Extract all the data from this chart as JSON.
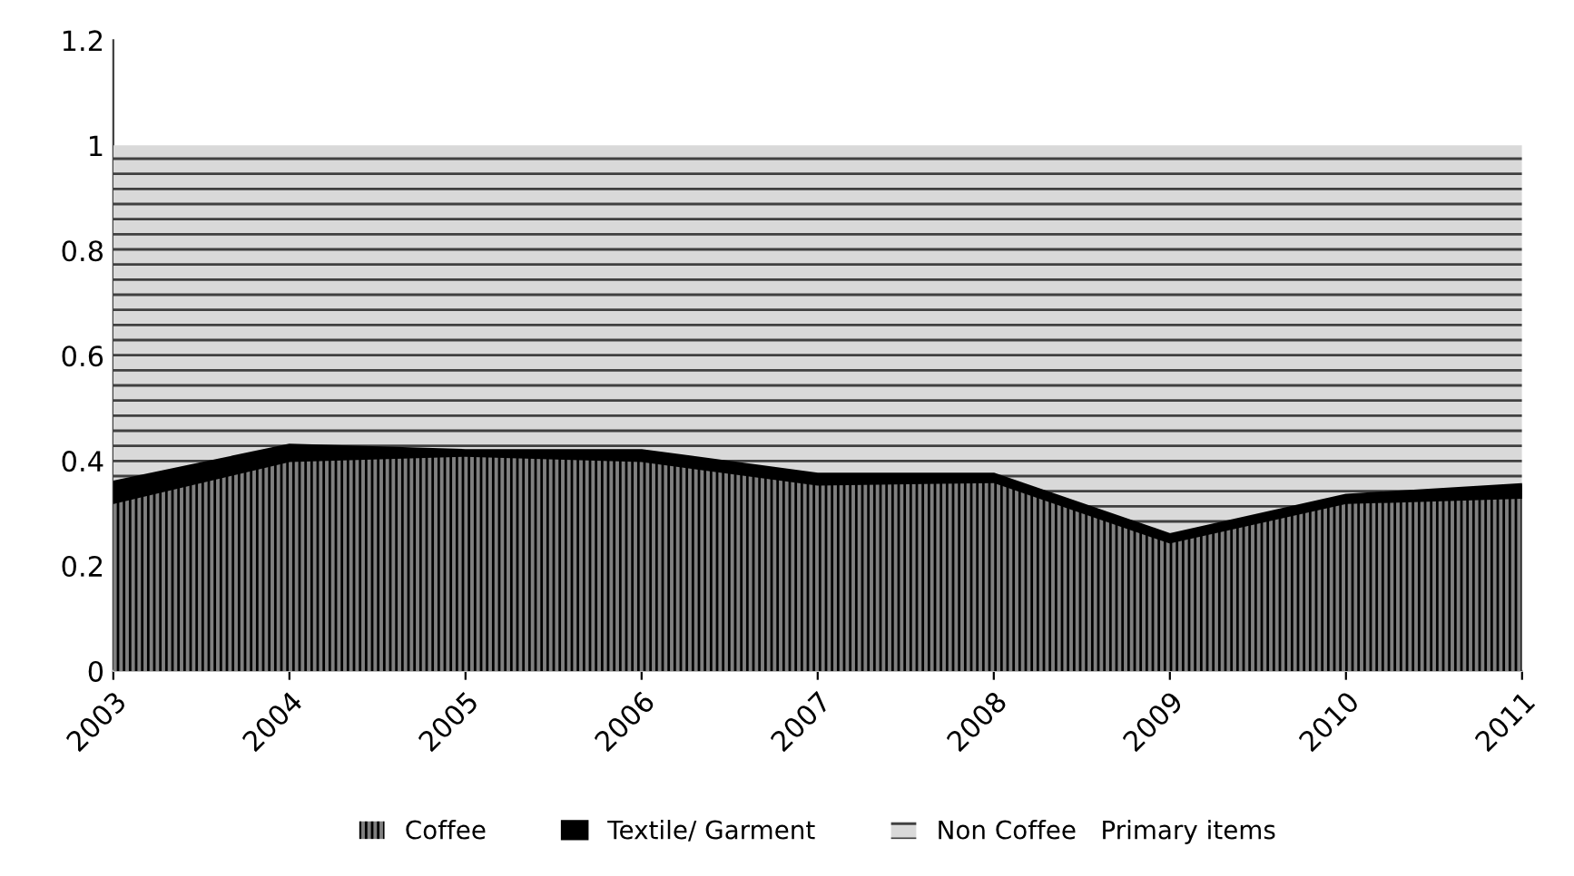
{
  "chart_data": {
    "type": "area",
    "stacked": true,
    "categories": [
      "2003",
      "2004",
      "2005",
      "2006",
      "2007",
      "2008",
      "2009",
      "2010",
      "2011"
    ],
    "series": [
      {
        "name": "Coffee",
        "color": "#808080",
        "values": [
          0.32,
          0.4,
          0.41,
          0.4,
          0.355,
          0.36,
          0.245,
          0.32,
          0.33
        ]
      },
      {
        "name": "Textile/ Garment",
        "color": "#000000",
        "values": [
          0.04,
          0.03,
          0.01,
          0.02,
          0.02,
          0.015,
          0.015,
          0.015,
          0.025
        ]
      },
      {
        "name": "Non Coffee   Primary items",
        "color": "#d9d9d9",
        "values": [
          0.64,
          0.57,
          0.58,
          0.58,
          0.625,
          0.625,
          0.74,
          0.665,
          0.645
        ]
      }
    ],
    "ylim": [
      0,
      1.2
    ],
    "yticks": [
      0,
      {
        "value": 0.2,
        "label": "0.2"
      },
      {
        "value": 0.4,
        "label": "0.4"
      },
      {
        "value": 0.6,
        "label": "0.6"
      },
      {
        "value": 0.8,
        "label": "0.8"
      },
      1,
      {
        "value": 1.2,
        "label": "1.2"
      }
    ],
    "legend": "bottom",
    "grid": false
  }
}
